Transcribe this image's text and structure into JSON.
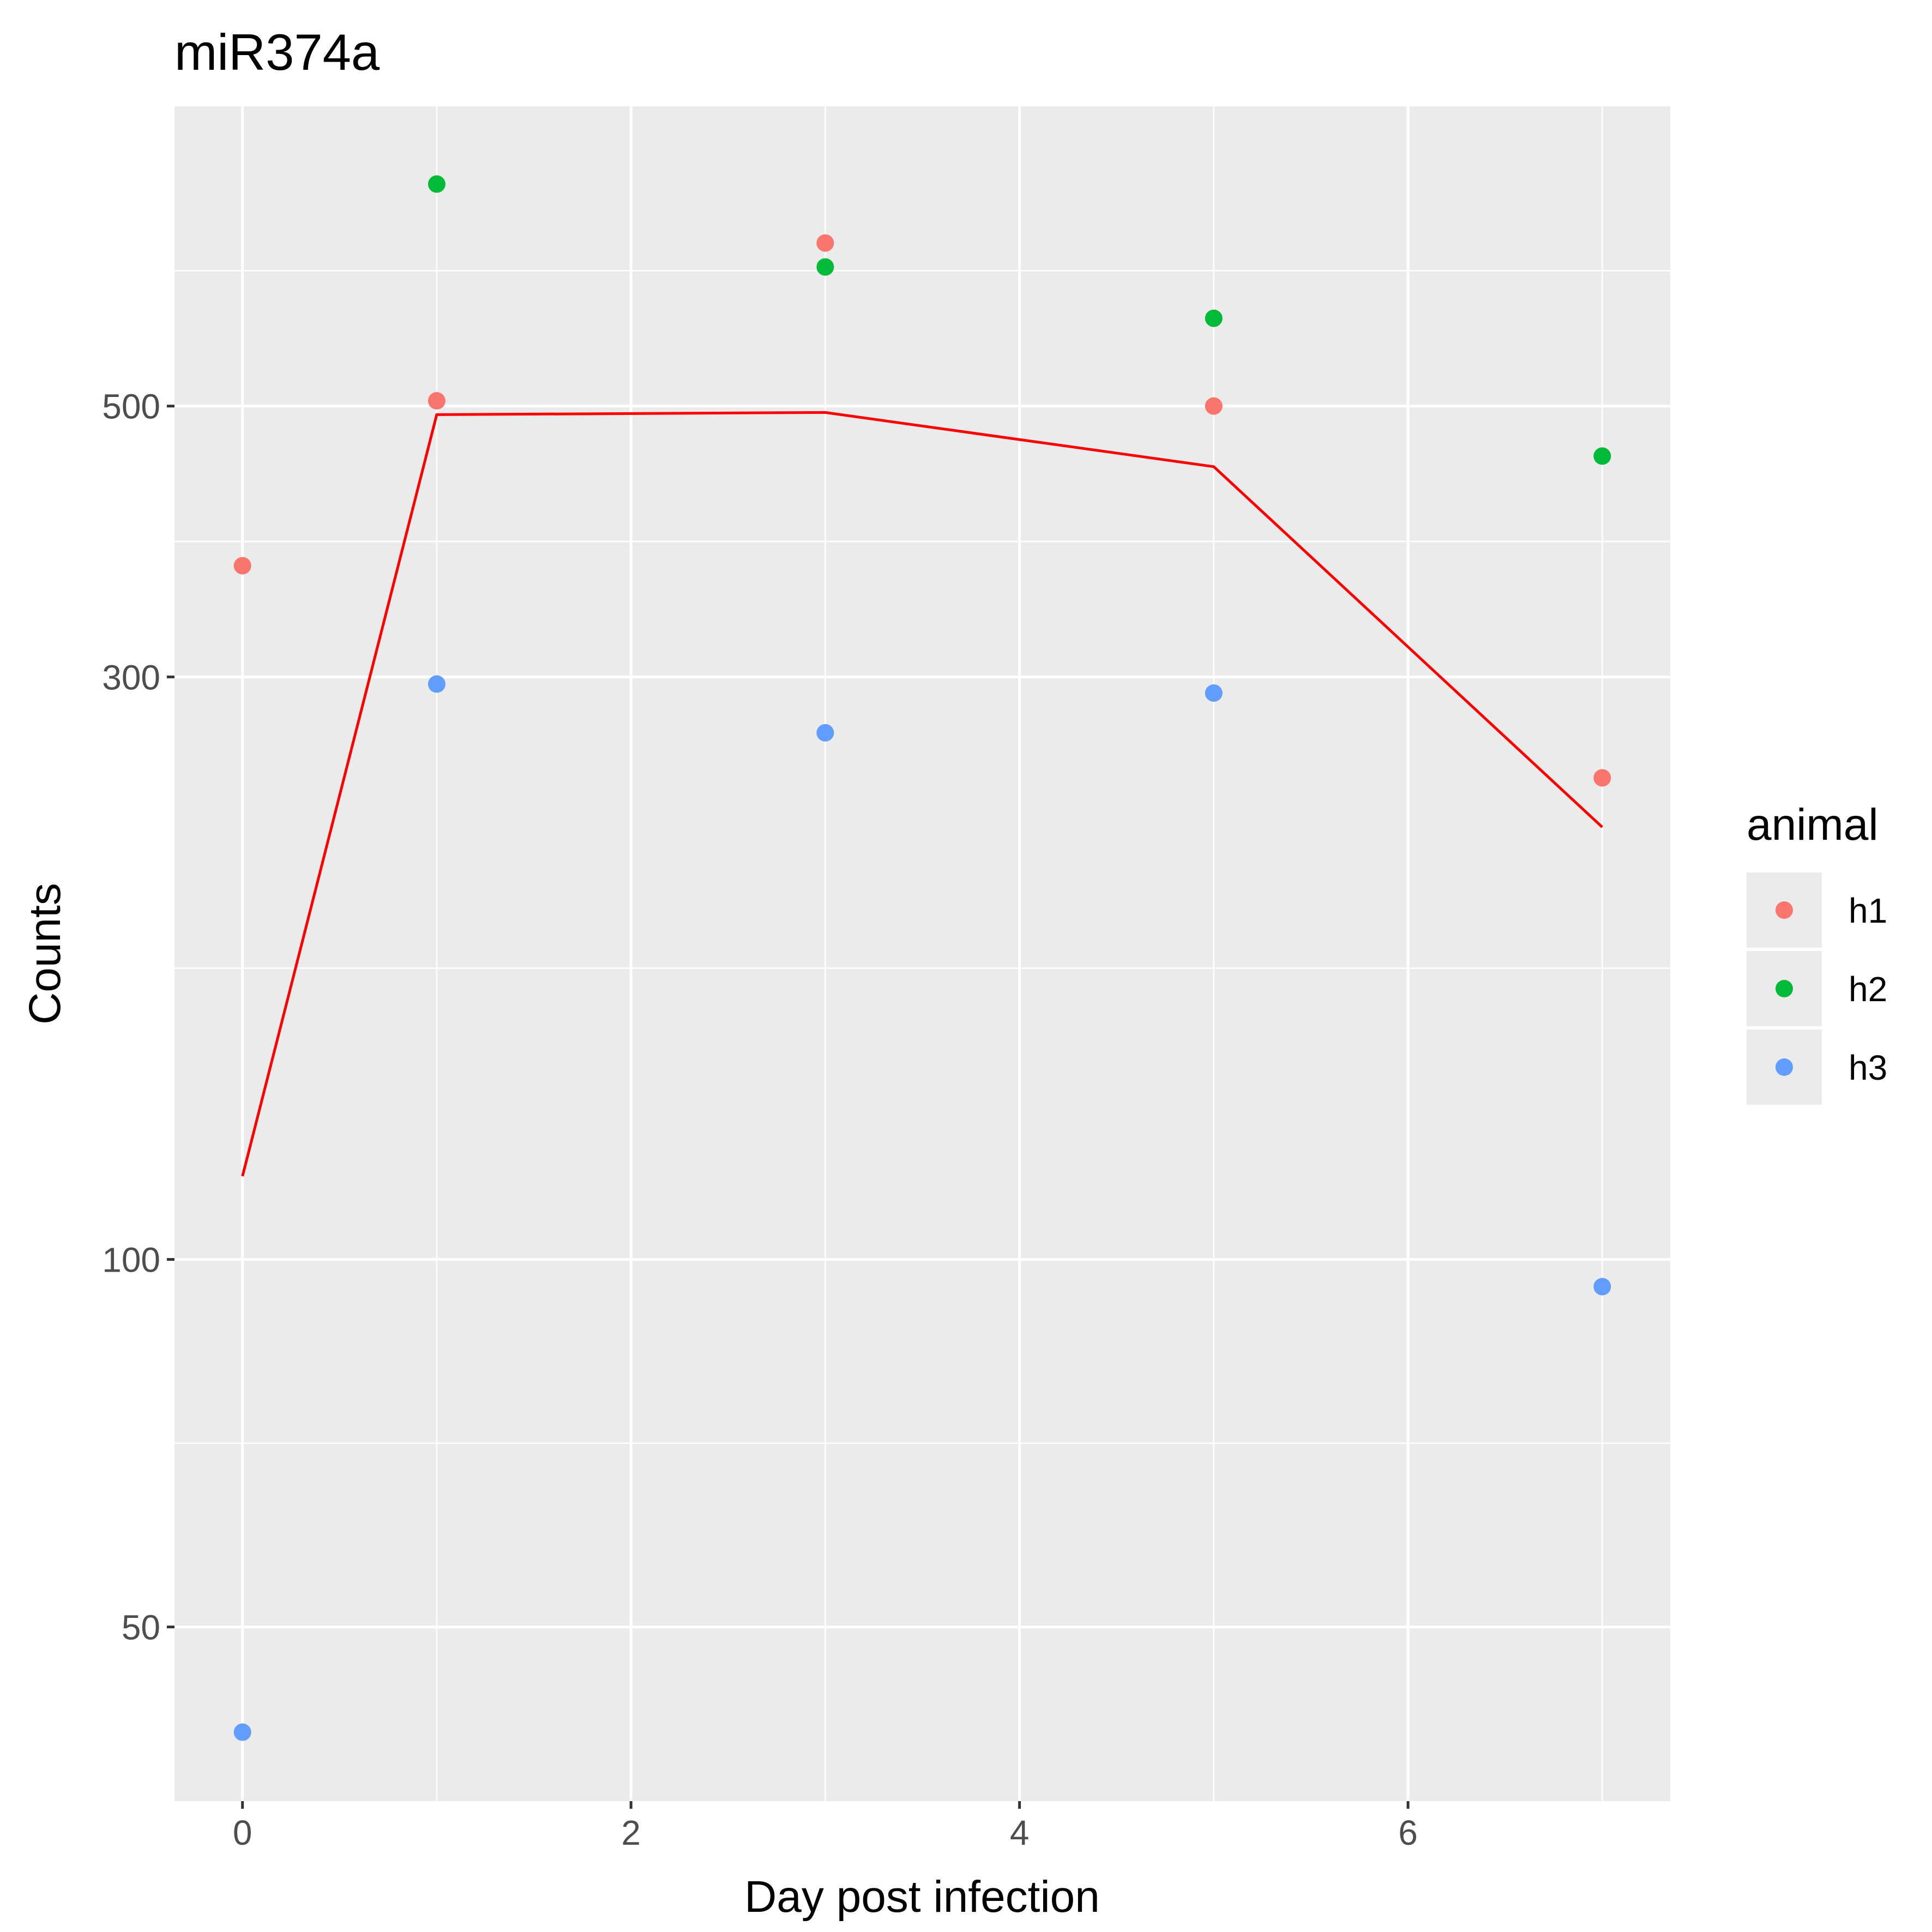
{
  "chart_data": {
    "type": "scatter",
    "title": "miR374a",
    "xlabel": "Day post infection",
    "ylabel": "Counts",
    "x_scale": "linear",
    "y_scale": "log10",
    "xlim": [
      -0.35,
      7.35
    ],
    "ylim": [
      36,
      880
    ],
    "x_ticks": [
      0,
      2,
      4,
      6
    ],
    "x_tick_labels": [
      "0",
      "2",
      "4",
      "6"
    ],
    "y_ticks": [
      50,
      100,
      300,
      500
    ],
    "y_tick_labels": [
      "50",
      "100",
      "300",
      "500"
    ],
    "grid": true,
    "legend": {
      "title": "animal",
      "position": "right"
    },
    "series": [
      {
        "name": "h1",
        "color": "#F8766D",
        "points": [
          [
            0,
            370
          ],
          [
            1,
            505
          ],
          [
            3,
            680
          ],
          [
            5,
            500
          ],
          [
            7,
            248
          ]
        ]
      },
      {
        "name": "h2",
        "color": "#00BA38",
        "points": [
          [
            1,
            760
          ],
          [
            3,
            650
          ],
          [
            5,
            590
          ],
          [
            7,
            455
          ]
        ]
      },
      {
        "name": "h3",
        "color": "#619CFF",
        "points": [
          [
            0,
            41
          ],
          [
            1,
            296
          ],
          [
            3,
            270
          ],
          [
            5,
            291
          ],
          [
            7,
            95
          ]
        ]
      }
    ],
    "mean_line": {
      "color": "#FF0000",
      "points": [
        [
          0,
          117
        ],
        [
          1,
          492
        ],
        [
          3,
          494
        ],
        [
          5,
          446
        ],
        [
          7,
          226
        ]
      ]
    }
  }
}
